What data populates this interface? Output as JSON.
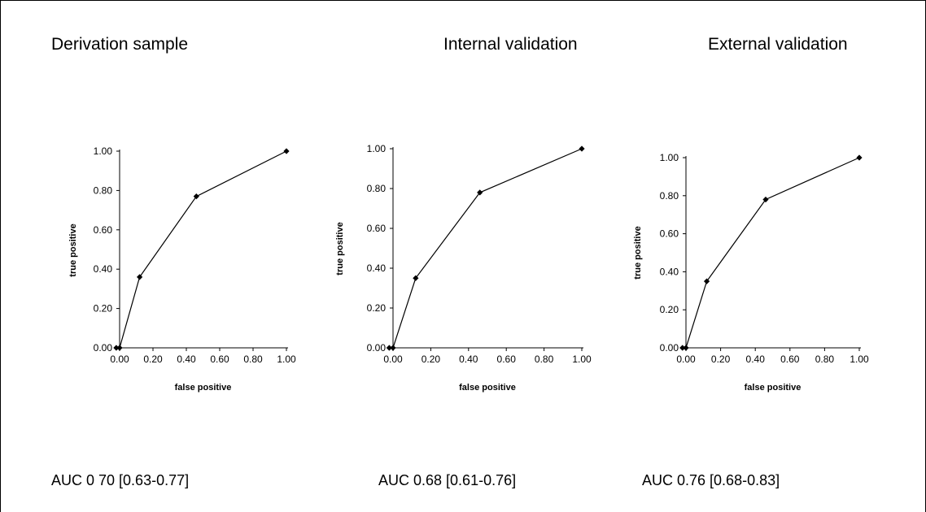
{
  "panels": [
    {
      "title": "Derivation sample",
      "auc": "AUC 0 70 [0.63-0.77]"
    },
    {
      "title": "Internal validation",
      "auc": "AUC 0.68 [0.61-0.76]"
    },
    {
      "title": "External validation",
      "auc": "AUC 0.76 [0.68-0.83]"
    }
  ],
  "chart_data": [
    {
      "type": "line",
      "title": "Derivation sample",
      "xlabel": "false positive",
      "ylabel": "true positive",
      "xlim": [
        0,
        1
      ],
      "ylim": [
        0,
        1
      ],
      "xticks": [
        "0.00",
        "0.20",
        "0.40",
        "0.60",
        "0.80",
        "1.00"
      ],
      "yticks": [
        "0.00",
        "0.20",
        "0.40",
        "0.60",
        "0.80",
        "1.00"
      ],
      "grid": false,
      "series": [
        {
          "x": [
            -0.02,
            0.0,
            0.12,
            0.46,
            1.0
          ],
          "y": [
            0.0,
            0.0,
            0.36,
            0.77,
            1.0
          ]
        }
      ]
    },
    {
      "type": "line",
      "title": "Internal validation",
      "xlabel": "false positive",
      "ylabel": "true positive",
      "xlim": [
        0,
        1
      ],
      "ylim": [
        0,
        1
      ],
      "xticks": [
        "0.00",
        "0.20",
        "0.40",
        "0.60",
        "0.80",
        "1.00"
      ],
      "yticks": [
        "0.00",
        "0.20",
        "0.40",
        "0.60",
        "0.80",
        "1.00"
      ],
      "grid": false,
      "series": [
        {
          "x": [
            -0.02,
            0.0,
            0.12,
            0.46,
            1.0
          ],
          "y": [
            0.0,
            0.0,
            0.35,
            0.78,
            1.0
          ]
        }
      ]
    },
    {
      "type": "line",
      "title": "External validation",
      "xlabel": "false positive",
      "ylabel": "true positive",
      "xlim": [
        0,
        1
      ],
      "ylim": [
        0,
        1
      ],
      "xticks": [
        "0.00",
        "0.20",
        "0.40",
        "0.60",
        "0.80",
        "1.00"
      ],
      "yticks": [
        "0.00",
        "0.20",
        "0.40",
        "0.60",
        "0.80",
        "1.00"
      ],
      "grid": false,
      "series": [
        {
          "x": [
            -0.02,
            0.0,
            0.12,
            0.46,
            1.0
          ],
          "y": [
            0.0,
            0.0,
            0.35,
            0.78,
            1.0
          ]
        }
      ]
    }
  ]
}
